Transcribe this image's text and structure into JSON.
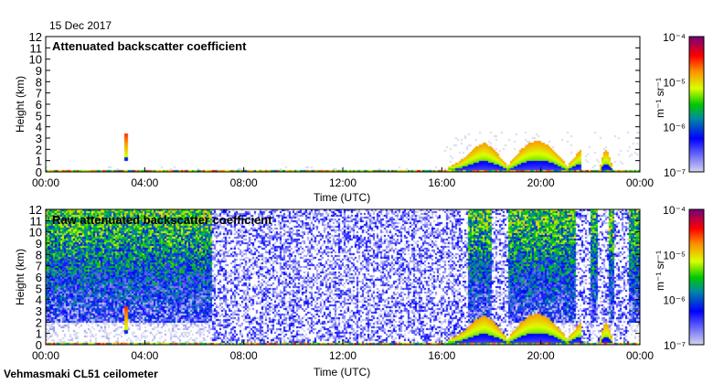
{
  "date": "15 Dec 2017",
  "footer": "Vehmasmaki CL51 ceilometer",
  "chart_data": [
    {
      "type": "heatmap",
      "title": "Attenuated backscatter coefficient",
      "xlabel": "Time (UTC)",
      "ylabel": "Height (km)",
      "xlim": [
        0,
        24
      ],
      "ylim": [
        0,
        12
      ],
      "xticks": [
        "00:00",
        "04:00",
        "08:00",
        "12:00",
        "16:00",
        "20:00",
        "00:00"
      ],
      "yticks": [
        "0",
        "1",
        "2",
        "3",
        "4",
        "5",
        "6",
        "7",
        "8",
        "9",
        "10",
        "11",
        "12"
      ],
      "features": [
        {
          "name": "surface layer",
          "t0": 0,
          "t1": 24,
          "h0": 0,
          "h1": 0.3,
          "log_beta": -5.2
        },
        {
          "name": "precipitation column",
          "t0": 3.15,
          "t1": 3.3,
          "h0": 1.0,
          "h1": 3.5,
          "log_beta": -5.3
        },
        {
          "name": "cloud layer",
          "t0": 16.2,
          "t1": 21.6,
          "h0": 0.2,
          "h1": 3.0,
          "log_beta": -5.6
        },
        {
          "name": "cloud patch",
          "t0": 22.3,
          "t1": 22.9,
          "h0": 0.0,
          "h1": 2.0,
          "log_beta": -5.6
        }
      ]
    },
    {
      "type": "heatmap",
      "title": "Raw attenuated backscatter coefficient",
      "xlabel": "Time (UTC)",
      "ylabel": "Height (km)",
      "xlim": [
        0,
        24
      ],
      "ylim": [
        0,
        12
      ],
      "xticks": [
        "00:00",
        "04:00",
        "08:00",
        "12:00",
        "16:00",
        "20:00",
        "00:00"
      ],
      "yticks": [
        "0",
        "1",
        "2",
        "3",
        "4",
        "5",
        "6",
        "7",
        "8",
        "9",
        "10",
        "11",
        "12"
      ],
      "noise_regimes": [
        {
          "t0": 0,
          "t1": 6.7,
          "level": "high"
        },
        {
          "t0": 6.7,
          "t1": 17.0,
          "level": "low"
        },
        {
          "t0": 17.0,
          "t1": 24,
          "level": "high"
        }
      ]
    }
  ],
  "colorbar": {
    "label": "m⁻¹ sr⁻¹",
    "ticks": [
      "10⁻⁴",
      "10⁻⁵",
      "10⁻⁶",
      "10⁻⁷"
    ],
    "range_log10": [
      -7,
      -4
    ]
  }
}
